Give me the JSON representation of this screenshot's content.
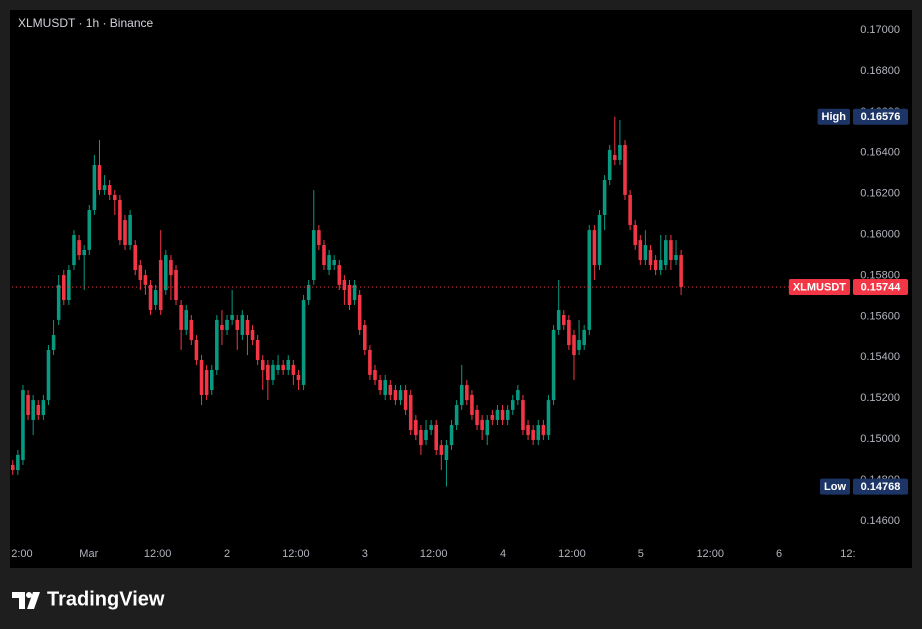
{
  "chart_data": {
    "type": "candlestick",
    "title": "XLMUSDT · 1h · Binance",
    "open": [
      0.14874,
      0.14849,
      0.14898,
      0.15216,
      0.15094,
      0.15167,
      0.15118,
      0.15191,
      0.15436,
      0.15583,
      0.15802,
      0.1568,
      0.15851,
      0.15973,
      0.159,
      0.15925,
      0.1612,
      0.1634,
      0.16218,
      0.16242,
      0.16194,
      0.16169,
      0.16071,
      0.15949,
      0.15949,
      0.15851,
      0.15802,
      0.15754,
      0.15656,
      0.15876,
      0.15729,
      0.15876,
      0.15827,
      0.15656,
      0.15534,
      0.15583,
      0.15485,
      0.15387,
      0.15338,
      0.1524,
      0.15338,
      0.15558,
      0.15534,
      0.15583,
      0.15583,
      0.15509,
      0.15583,
      0.15534,
      0.15485,
      0.15387,
      0.15363,
      0.15289,
      0.15338,
      0.15363,
      0.15338,
      0.15363,
      0.15314,
      0.15265,
      0.1568,
      0.15778,
      0.16022,
      0.15949,
      0.15827,
      0.15851,
      0.15851,
      0.15778,
      0.15754,
      0.1568,
      0.15705,
      0.15558,
      0.15436,
      0.15338,
      0.15289,
      0.15216,
      0.15265,
      0.1524,
      0.15191,
      0.1524,
      0.15216,
      0.15094,
      0.15045,
      0.14996,
      0.15045,
      0.15069,
      0.14971,
      0.14898,
      0.14971,
      0.15069,
      0.15167,
      0.15265,
      0.15216,
      0.15143,
      0.15094,
      0.1502,
      0.15118,
      0.15094,
      0.15143,
      0.15094,
      0.15143,
      0.15191,
      0.15191,
      0.15069,
      0.15045,
      0.14996,
      0.15069,
      0.1502,
      0.15191,
      0.15534,
      0.15607,
      0.15583,
      0.15509,
      0.15436,
      0.1546,
      0.15534,
      0.16022,
      0.15851,
      0.16096,
      0.16267,
      0.16389,
      0.16365,
      0.16438,
      0.16194,
      0.16047,
      0.15973,
      0.15876,
      0.15925,
      0.15876,
      0.15827,
      0.15851,
      0.15973,
      0.15876,
      0.159
    ],
    "high": [
      0.14898,
      0.14947,
      0.15265,
      0.1524,
      0.15216,
      0.15191,
      0.15216,
      0.1546,
      0.15583,
      0.15802,
      0.15827,
      0.15851,
      0.16022,
      0.15998,
      0.15949,
      0.16145,
      0.16389,
      0.16462,
      0.16291,
      0.16267,
      0.16218,
      0.16194,
      0.16096,
      0.1612,
      0.15973,
      0.15876,
      0.15827,
      0.15778,
      0.15754,
      0.16022,
      0.15925,
      0.159,
      0.15851,
      0.1568,
      0.15656,
      0.15607,
      0.15509,
      0.15411,
      0.15363,
      0.15363,
      0.15607,
      0.15631,
      0.15607,
      0.15729,
      0.15607,
      0.15631,
      0.15607,
      0.15558,
      0.15509,
      0.15411,
      0.15387,
      0.15387,
      0.15411,
      0.15387,
      0.15411,
      0.15387,
      0.15338,
      0.15705,
      0.15778,
      0.16218,
      0.16047,
      0.15973,
      0.15925,
      0.159,
      0.15876,
      0.15802,
      0.15778,
      0.15778,
      0.15729,
      0.15583,
      0.1546,
      0.15363,
      0.15314,
      0.15314,
      0.15289,
      0.15265,
      0.15265,
      0.15265,
      0.1524,
      0.15118,
      0.15069,
      0.15094,
      0.15094,
      0.15094,
      0.14996,
      0.14996,
      0.15094,
      0.15191,
      0.15363,
      0.15289,
      0.1524,
      0.15167,
      0.15118,
      0.15118,
      0.15143,
      0.15167,
      0.15167,
      0.15167,
      0.15216,
      0.15265,
      0.15216,
      0.15094,
      0.15069,
      0.15094,
      0.15094,
      0.15216,
      0.15558,
      0.15778,
      0.15631,
      0.15607,
      0.15534,
      0.15583,
      0.15558,
      0.16047,
      0.16047,
      0.1612,
      0.16291,
      0.16438,
      0.16576,
      0.1656,
      0.16462,
      0.16218,
      0.16071,
      0.15998,
      0.16022,
      0.15949,
      0.159,
      0.15998,
      0.15998,
      0.15998,
      0.15973,
      0.15925
    ],
    "low": [
      0.14825,
      0.14825,
      0.14874,
      0.15094,
      0.1502,
      0.15094,
      0.15094,
      0.15167,
      0.15411,
      0.15558,
      0.15656,
      0.15656,
      0.15827,
      0.15876,
      0.15729,
      0.159,
      0.16096,
      0.16194,
      0.16194,
      0.16169,
      0.16096,
      0.15949,
      0.15925,
      0.15925,
      0.15802,
      0.15729,
      0.15705,
      0.15607,
      0.15631,
      0.15607,
      0.15705,
      0.1568,
      0.15656,
      0.15436,
      0.15509,
      0.1546,
      0.15363,
      0.15167,
      0.15191,
      0.15216,
      0.15314,
      0.1546,
      0.15509,
      0.15558,
      0.15436,
      0.15485,
      0.15411,
      0.1546,
      0.15363,
      0.1524,
      0.15191,
      0.15265,
      0.15314,
      0.15314,
      0.15314,
      0.15265,
      0.1524,
      0.1524,
      0.15656,
      0.15754,
      0.15925,
      0.15827,
      0.15802,
      0.15827,
      0.15729,
      0.15656,
      0.15631,
      0.15656,
      0.15509,
      0.15411,
      0.15289,
      0.15265,
      0.15216,
      0.15191,
      0.15191,
      0.15167,
      0.15167,
      0.15118,
      0.1502,
      0.14996,
      0.14923,
      0.14971,
      0.1502,
      0.14923,
      0.14849,
      0.14768,
      0.14947,
      0.15045,
      0.15143,
      0.15167,
      0.15094,
      0.15045,
      0.14996,
      0.14971,
      0.15069,
      0.15069,
      0.15069,
      0.15069,
      0.15118,
      0.15167,
      0.1502,
      0.14996,
      0.14971,
      0.14971,
      0.14996,
      0.14996,
      0.15167,
      0.15509,
      0.15534,
      0.15436,
      0.15289,
      0.15411,
      0.15436,
      0.15509,
      0.15778,
      0.15827,
      0.16022,
      0.16242,
      0.1634,
      0.1634,
      0.16169,
      0.16022,
      0.15925,
      0.15851,
      0.15851,
      0.15827,
      0.15802,
      0.15802,
      0.15827,
      0.15827,
      0.15851,
      0.15705
    ],
    "close": [
      0.14849,
      0.14923,
      0.1524,
      0.15118,
      0.15191,
      0.15118,
      0.15191,
      0.15436,
      0.15509,
      0.15754,
      0.1568,
      0.15827,
      0.15998,
      0.159,
      0.15925,
      0.1612,
      0.1634,
      0.16218,
      0.16242,
      0.16194,
      0.16169,
      0.15973,
      0.15949,
      0.16096,
      0.15827,
      0.15778,
      0.15754,
      0.15631,
      0.15729,
      0.15631,
      0.159,
      0.15802,
      0.1568,
      0.15534,
      0.15631,
      0.15485,
      0.15387,
      0.15216,
      0.15216,
      0.15338,
      0.15583,
      0.15534,
      0.15583,
      0.15607,
      0.15534,
      0.15607,
      0.15509,
      0.15485,
      0.15387,
      0.15338,
      0.15289,
      0.15363,
      0.15363,
      0.15338,
      0.15387,
      0.15314,
      0.15289,
      0.1568,
      0.15754,
      0.16022,
      0.15949,
      0.15851,
      0.159,
      0.15876,
      0.15754,
      0.15729,
      0.15656,
      0.15754,
      0.15534,
      0.15436,
      0.15314,
      0.15289,
      0.1524,
      0.15289,
      0.15216,
      0.15191,
      0.1524,
      0.15143,
      0.15045,
      0.1502,
      0.14971,
      0.15045,
      0.15069,
      0.14947,
      0.14923,
      0.14971,
      0.15069,
      0.15167,
      0.15265,
      0.15191,
      0.15118,
      0.15069,
      0.15045,
      0.15094,
      0.15094,
      0.15143,
      0.15094,
      0.15143,
      0.15191,
      0.1524,
      0.15045,
      0.1502,
      0.14996,
      0.15069,
      0.1502,
      0.15191,
      0.15534,
      0.15631,
      0.15558,
      0.1546,
      0.15411,
      0.15485,
      0.15534,
      0.16022,
      0.15851,
      0.16096,
      0.16267,
      0.16414,
      0.16365,
      0.16438,
      0.16194,
      0.16047,
      0.15949,
      0.15876,
      0.15949,
      0.15851,
      0.15827,
      0.15876,
      0.15973,
      0.15876,
      0.159,
      0.15744
    ],
    "up_color": "#089981",
    "down_color": "#f23645",
    "ylim": [
      0.14507,
      0.17098
    ],
    "yticks": [
      {
        "value": 0.146,
        "label": "0.14600"
      },
      {
        "value": 0.148,
        "label": "0.14800"
      },
      {
        "value": 0.15,
        "label": "0.15000"
      },
      {
        "value": 0.152,
        "label": "0.15200"
      },
      {
        "value": 0.154,
        "label": "0.15400"
      },
      {
        "value": 0.156,
        "label": "0.15600"
      },
      {
        "value": 0.158,
        "label": "0.15800"
      },
      {
        "value": 0.16,
        "label": "0.16000"
      },
      {
        "value": 0.162,
        "label": "0.16200"
      },
      {
        "value": 0.164,
        "label": "0.16400"
      },
      {
        "value": 0.166,
        "label": "0.16600"
      },
      {
        "value": 0.168,
        "label": "0.16800"
      },
      {
        "value": 0.17,
        "label": "0.17000"
      }
    ],
    "xlim": [
      -2.5,
      164.1
    ],
    "xticks": [
      {
        "value": 1.8,
        "label": "2:00"
      },
      {
        "value": 14.9,
        "label": "Mar"
      },
      {
        "value": 28.4,
        "label": "12:00"
      },
      {
        "value": 42.0,
        "label": "2"
      },
      {
        "value": 55.5,
        "label": "12:00"
      },
      {
        "value": 69.0,
        "label": "3"
      },
      {
        "value": 82.5,
        "label": "12:00"
      },
      {
        "value": 96.1,
        "label": "4"
      },
      {
        "value": 109.6,
        "label": "12:00"
      },
      {
        "value": 123.1,
        "label": "5"
      },
      {
        "value": 136.7,
        "label": "12:00"
      },
      {
        "value": 150.2,
        "label": "6"
      },
      {
        "value": 163.7,
        "label": "12:"
      }
    ],
    "grid": false,
    "markers": [
      {
        "label": "High",
        "value": 0.16576,
        "color": "#1c3566"
      },
      {
        "label": "XLMUSDT",
        "value": 0.15744,
        "color": "#f23645"
      },
      {
        "label": "Low",
        "value": 0.14768,
        "color": "#1c3566"
      }
    ]
  },
  "footer": {
    "brand": "TradingView"
  }
}
